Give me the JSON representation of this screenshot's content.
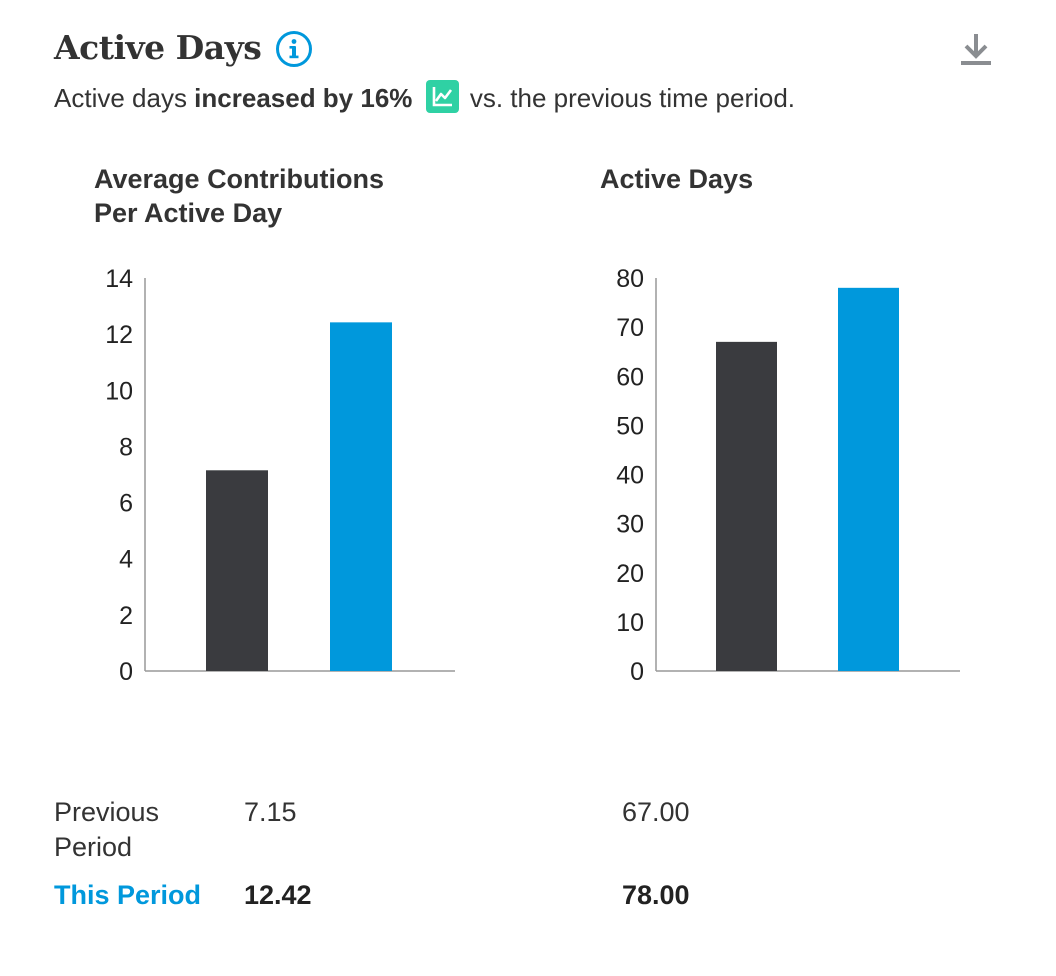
{
  "header": {
    "title": "Active Days",
    "summary_prefix": "Active days ",
    "summary_bold": "increased by 16%",
    "summary_suffix": " vs. the previous time period.",
    "info_icon": "info-icon",
    "trend_icon": "trend-up-icon",
    "download_icon": "download-icon"
  },
  "colors": {
    "previous": "#3a3b3f",
    "current": "#0098dc",
    "trend_badge": "#2fd1a4",
    "axis": "#999999"
  },
  "chart_data": [
    {
      "type": "bar",
      "title_lines": [
        "Average Contributions",
        "Per Active Day"
      ],
      "categories": [
        "Previous Period",
        "This Period"
      ],
      "values": [
        7.15,
        12.42
      ],
      "ylim": [
        0,
        14
      ],
      "yticks": [
        "0",
        "2",
        "4",
        "6",
        "8",
        "10",
        "12",
        "14"
      ],
      "grid": false
    },
    {
      "type": "bar",
      "title_lines": [
        "Active Days"
      ],
      "categories": [
        "Previous Period",
        "This Period"
      ],
      "values": [
        67.0,
        78.0
      ],
      "ylim": [
        0,
        80
      ],
      "yticks": [
        "0",
        "10",
        "20",
        "30",
        "40",
        "50",
        "60",
        "70",
        "80"
      ],
      "grid": false
    }
  ],
  "table": {
    "previous_label_lines": [
      "Previous",
      "Period"
    ],
    "this_label": "This Period",
    "previous_values": [
      "7.15",
      "67.00"
    ],
    "this_values": [
      "12.42",
      "78.00"
    ]
  }
}
